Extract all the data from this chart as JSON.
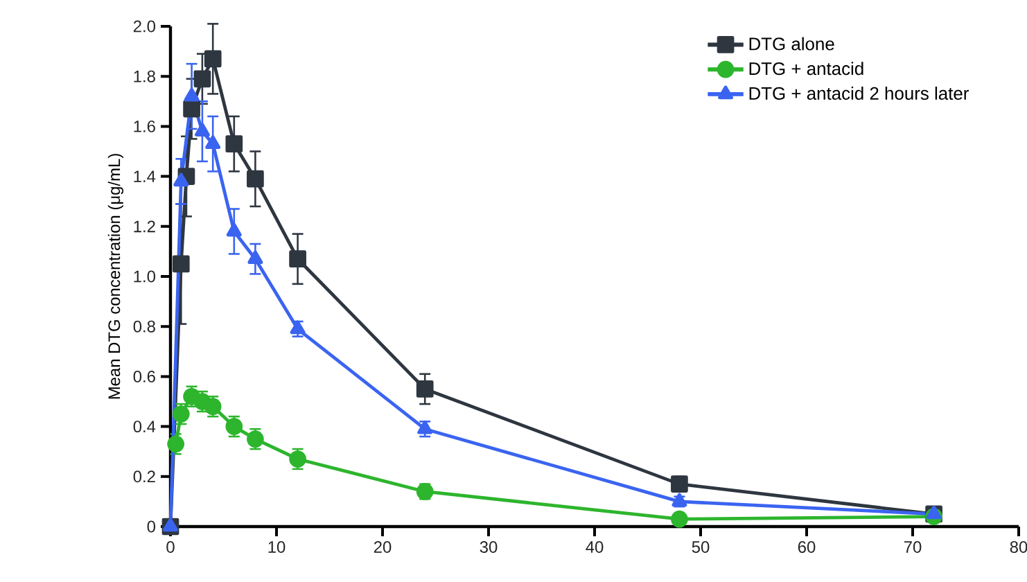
{
  "chart_data": {
    "type": "line",
    "ylabel": "Mean DTG concentration (μg/mL)",
    "xlim": [
      0,
      80
    ],
    "xticks": [
      0,
      10,
      20,
      30,
      40,
      50,
      60,
      70,
      80
    ],
    "ylim": [
      0,
      2.0
    ],
    "yticks": [
      0,
      {
        "value": 0.2,
        "label": "0.2"
      },
      {
        "value": 0.4,
        "label": "0.4"
      },
      {
        "value": 0.6,
        "label": "0.6"
      },
      {
        "value": 0.8,
        "label": "0.8"
      },
      {
        "value": 1.0,
        "label": "1.0"
      },
      {
        "value": 1.2,
        "label": "1.2"
      },
      {
        "value": 1.4,
        "label": "1.4"
      },
      {
        "value": 1.6,
        "label": "1.6"
      },
      {
        "value": 1.8,
        "label": "1.8"
      },
      {
        "value": 2.0,
        "label": "2.0"
      }
    ],
    "grid": false,
    "legend": "top right",
    "line_style": "solid",
    "series": [
      {
        "name": "DTG alone",
        "color": "#2e3640",
        "marker": "square",
        "x": [
          0,
          1,
          1.5,
          2,
          3,
          4,
          6,
          8,
          12,
          24,
          48,
          72
        ],
        "values": [
          0,
          1.05,
          1.4,
          1.67,
          1.79,
          1.87,
          1.53,
          1.39,
          1.07,
          0.55,
          0.17,
          0.05
        ],
        "errors": [
          null,
          0.24,
          0.16,
          0.12,
          0.1,
          0.14,
          0.11,
          0.11,
          0.1,
          0.06,
          0.03,
          0.02
        ]
      },
      {
        "name": "DTG + antacid",
        "color": "#2db52d",
        "marker": "circle",
        "x": [
          0.5,
          1,
          2,
          3,
          4,
          6,
          8,
          12,
          24,
          48,
          72
        ],
        "values": [
          0.33,
          0.45,
          0.52,
          0.5,
          0.48,
          0.4,
          0.35,
          0.27,
          0.14,
          0.03,
          0.04
        ],
        "errors": [
          0.04,
          0.04,
          0.04,
          0.04,
          0.04,
          0.04,
          0.04,
          0.04,
          0.03,
          0.02,
          0.02
        ]
      },
      {
        "name": "DTG + antacid 2 hours later",
        "color": "#3a64f0",
        "marker": "triangle",
        "x": [
          0,
          1,
          2,
          3,
          4,
          6,
          8,
          12,
          24,
          48,
          72
        ],
        "values": [
          0,
          1.38,
          1.72,
          1.58,
          1.53,
          1.18,
          1.07,
          0.79,
          0.39,
          0.1,
          0.05
        ],
        "errors": [
          null,
          0.09,
          0.13,
          0.12,
          0.11,
          0.09,
          0.06,
          0.03,
          0.03,
          0.02,
          0.02
        ]
      }
    ]
  }
}
